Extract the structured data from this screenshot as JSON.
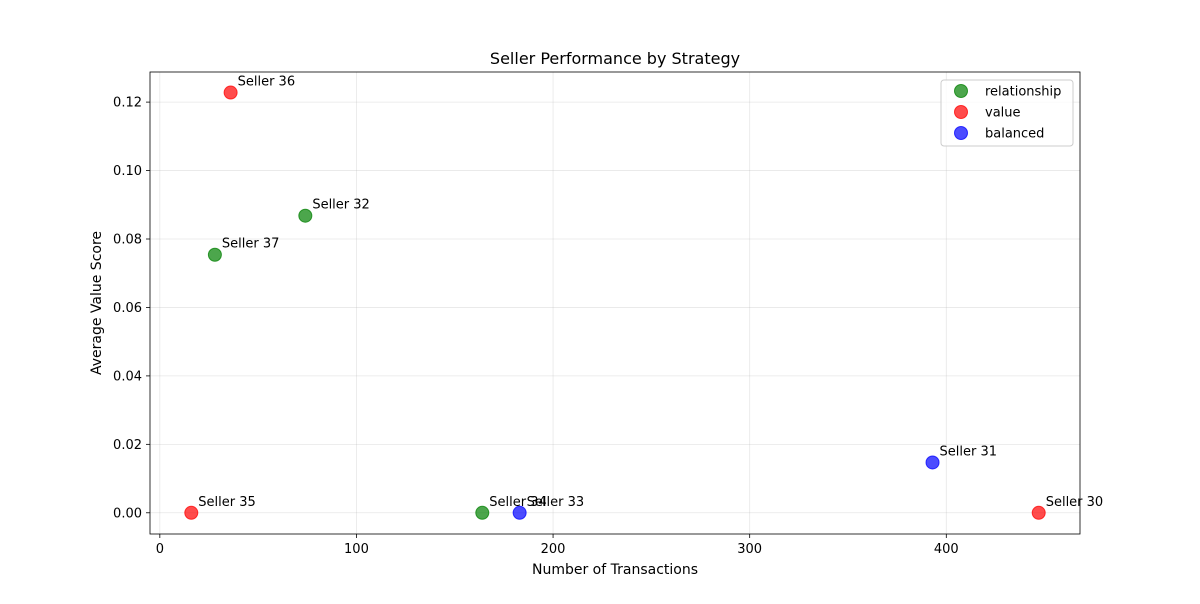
{
  "chart_data": {
    "type": "scatter",
    "title": "Seller Performance by Strategy",
    "xlabel": "Number of Transactions",
    "ylabel": "Average Value Score",
    "xlim": [
      -5,
      468
    ],
    "ylim": [
      -0.0062,
      0.1288
    ],
    "xticks": [
      0,
      100,
      200,
      300,
      400
    ],
    "xtick_labels": [
      "0",
      "100",
      "200",
      "300",
      "400"
    ],
    "yticks": [
      0.0,
      0.02,
      0.04,
      0.06,
      0.08,
      0.1,
      0.12
    ],
    "ytick_labels": [
      "0.00",
      "0.02",
      "0.04",
      "0.06",
      "0.08",
      "0.10",
      "0.12"
    ],
    "grid": true,
    "legend_position": "top-right",
    "series": [
      {
        "name": "relationship",
        "color": "#008000",
        "points": [
          {
            "label": "Seller 32",
            "x": 74,
            "y": 0.0868
          },
          {
            "label": "Seller 37",
            "x": 28,
            "y": 0.0754
          },
          {
            "label": "Seller 34",
            "x": 164,
            "y": 0.0
          }
        ]
      },
      {
        "name": "value",
        "color": "#ff0000",
        "points": [
          {
            "label": "Seller 36",
            "x": 36,
            "y": 0.1228
          },
          {
            "label": "Seller 35",
            "x": 16,
            "y": 0.0
          },
          {
            "label": "Seller 30",
            "x": 447,
            "y": 0.0
          }
        ]
      },
      {
        "name": "balanced",
        "color": "#0000ff",
        "points": [
          {
            "label": "Seller 31",
            "x": 393,
            "y": 0.0147
          },
          {
            "label": "Seller 33",
            "x": 183,
            "y": 0.0
          }
        ]
      }
    ]
  }
}
